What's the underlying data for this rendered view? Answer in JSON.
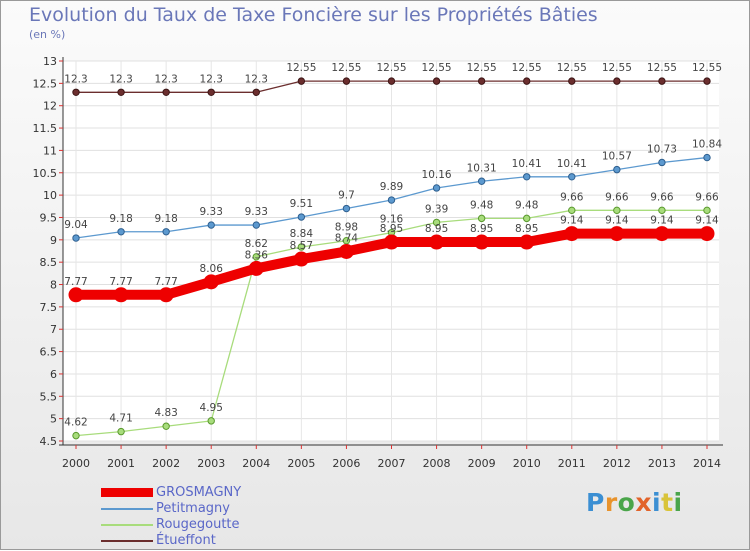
{
  "title": "Evolution du Taux de Taxe Foncière sur les Propriétés Bâties",
  "subtitle": "(en %)",
  "logo": {
    "letters": [
      "P",
      "r",
      "o",
      "x",
      "i",
      "t",
      "i"
    ],
    "colors": [
      "#3b8fd3",
      "#e8932c",
      "#4aa54a",
      "#e2632a",
      "#3b8fd3",
      "#d9c43a",
      "#4aa54a"
    ]
  },
  "chart_data": {
    "type": "line",
    "title": "Evolution du Taux de Taxe Foncière sur les Propriétés Bâties",
    "ylabel": "(en %)",
    "x": [
      "2000",
      "2001",
      "2002",
      "2003",
      "2004",
      "2005",
      "2006",
      "2007",
      "2008",
      "2009",
      "2010",
      "2011",
      "2012",
      "2013",
      "2014"
    ],
    "ylim": [
      4.5,
      13
    ],
    "yticks": [
      "4.5",
      "5",
      "5.5",
      "6",
      "6.5",
      "7",
      "7.5",
      "8",
      "8.5",
      "9",
      "9.5",
      "10",
      "10.5",
      "11",
      "11.5",
      "12",
      "12.5",
      "13"
    ],
    "grid": true,
    "series": [
      {
        "name": "Étueffont",
        "color": "#6b2e2e",
        "values": [
          12.3,
          12.3,
          12.3,
          12.3,
          12.3,
          12.55,
          12.55,
          12.55,
          12.55,
          12.55,
          12.55,
          12.55,
          12.55,
          12.55,
          12.55
        ],
        "labels": [
          "12.3",
          "12.3",
          "12.3",
          "12.3",
          "12.3",
          "12.55",
          "12.55",
          "12.55",
          "12.55",
          "12.55",
          "12.55",
          "12.55",
          "12.55",
          "12.55",
          "12.55"
        ]
      },
      {
        "name": "Petitmagny",
        "color": "#5c99cf",
        "values": [
          9.04,
          9.18,
          9.18,
          9.33,
          9.33,
          9.51,
          9.7,
          9.89,
          10.16,
          10.31,
          10.41,
          10.41,
          10.57,
          10.73,
          10.84
        ],
        "labels": [
          "9.04",
          "9.18",
          "9.18",
          "9.33",
          "9.33",
          "9.51",
          "9.7",
          "9.89",
          "10.16",
          "10.31",
          "10.41",
          "10.41",
          "10.57",
          "10.73",
          "10.84"
        ]
      },
      {
        "name": "Rougegoutte",
        "color": "#a8dc7c",
        "values": [
          4.62,
          4.71,
          4.83,
          4.95,
          8.62,
          8.84,
          8.98,
          9.16,
          9.39,
          9.48,
          9.48,
          9.66,
          9.66,
          9.66,
          9.66
        ],
        "labels": [
          "4.62",
          "4.71",
          "4.83",
          "4.95",
          "8.62",
          "8.84",
          "8.98",
          "9.16",
          "9.39",
          "9.48",
          "9.48",
          "9.66",
          "9.66",
          "9.66",
          "9.66"
        ]
      },
      {
        "name": "GROSMAGNY",
        "color": "#ee0000",
        "values": [
          7.77,
          7.77,
          7.77,
          8.06,
          8.36,
          8.57,
          8.74,
          8.95,
          8.95,
          8.95,
          8.95,
          9.14,
          9.14,
          9.14,
          9.14
        ],
        "labels": [
          "7.77",
          "7.77",
          "7.77",
          "8.06",
          "8.36",
          "8.57",
          "8.74",
          "8.95",
          "8.95",
          "8.95",
          "8.95",
          "9.14",
          "9.14",
          "9.14",
          "9.14"
        ]
      }
    ],
    "legend": [
      "GROSMAGNY",
      "Petitmagny",
      "Rougegoutte",
      "Étueffont"
    ],
    "legend_position": "bottom-left"
  }
}
